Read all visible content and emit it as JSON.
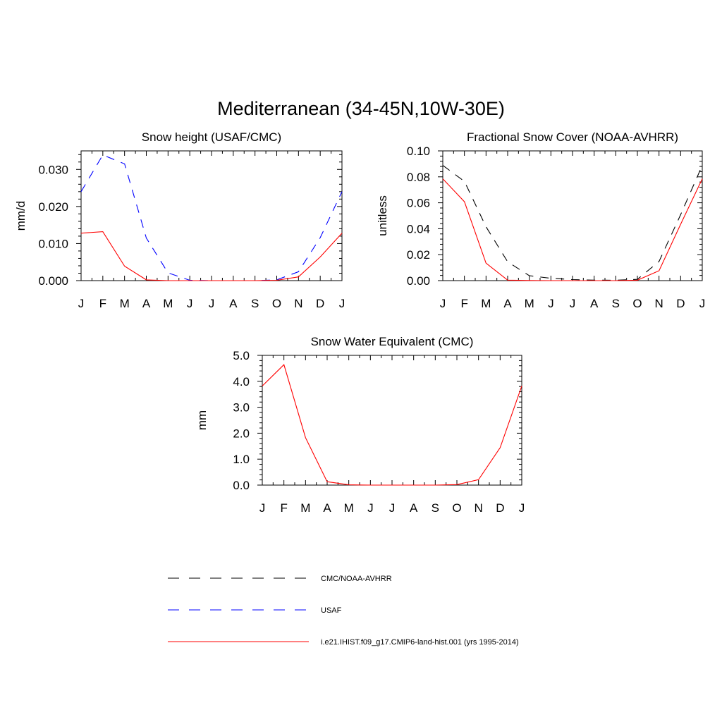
{
  "main_title": "Mediterranean (34-45N,10W-30E)",
  "chart_data": [
    {
      "type": "line",
      "title": "Snow height (USAF/CMC)",
      "ylabel": "mm/d",
      "xlabel": "",
      "categories": [
        "J",
        "F",
        "M",
        "A",
        "M",
        "J",
        "J",
        "A",
        "S",
        "O",
        "N",
        "D",
        "J"
      ],
      "ylim": [
        0,
        0.035
      ],
      "yticks": [
        "0.000",
        "0.010",
        "0.020",
        "0.030"
      ],
      "ytick_values": [
        0,
        0.01,
        0.02,
        0.03
      ],
      "grid": false,
      "series": [
        {
          "name": "USAF",
          "color": "#0000ff",
          "style": "dashed",
          "values": [
            0.024,
            0.0339,
            0.0315,
            0.0115,
            0.0021,
            0.0001,
            0.0,
            0.0,
            0.0,
            0.0002,
            0.0024,
            0.0116,
            0.024
          ]
        },
        {
          "name": "i.e21.IHIST.f09_g17.CMIP6-land-hist.001 (yrs 1995-2014)",
          "color": "#ff0000",
          "style": "solid",
          "values": [
            0.0128,
            0.0132,
            0.0039,
            0.0002,
            0.0,
            0.0,
            0.0,
            0.0,
            0.0,
            0.0001,
            0.001,
            0.0064,
            0.0128
          ]
        }
      ]
    },
    {
      "type": "line",
      "title": "Fractional Snow Cover (NOAA-AVHRR)",
      "ylabel": "unitless",
      "xlabel": "",
      "categories": [
        "J",
        "F",
        "M",
        "A",
        "M",
        "J",
        "J",
        "A",
        "S",
        "O",
        "N",
        "D",
        "J"
      ],
      "ylim": [
        0,
        0.1
      ],
      "yticks": [
        "0.00",
        "0.02",
        "0.04",
        "0.06",
        "0.08",
        "0.10"
      ],
      "ytick_values": [
        0,
        0.02,
        0.04,
        0.06,
        0.08,
        0.1
      ],
      "grid": false,
      "series": [
        {
          "name": "CMC/NOAA-AVHRR",
          "color": "#000000",
          "style": "dashed",
          "values": [
            0.0888,
            0.0765,
            0.0415,
            0.0145,
            0.0038,
            0.0018,
            0.0008,
            0.0004,
            0.0003,
            0.001,
            0.0148,
            0.0508,
            0.0888
          ]
        },
        {
          "name": "i.e21.IHIST.f09_g17.CMIP6-land-hist.001 (yrs 1995-2014)",
          "color": "#ff0000",
          "style": "solid",
          "values": [
            0.0785,
            0.0608,
            0.0135,
            0.0004,
            0.0001,
            0.0,
            0.0,
            0.0,
            0.0,
            0.0003,
            0.0076,
            0.0434,
            0.0785
          ]
        }
      ]
    },
    {
      "type": "line",
      "title": "Snow Water Equivalent (CMC)",
      "ylabel": "mm",
      "xlabel": "",
      "categories": [
        "J",
        "F",
        "M",
        "A",
        "M",
        "J",
        "J",
        "A",
        "S",
        "O",
        "N",
        "D",
        "J"
      ],
      "ylim": [
        0,
        5.0
      ],
      "yticks": [
        "0.0",
        "1.0",
        "2.0",
        "3.0",
        "4.0",
        "5.0"
      ],
      "ytick_values": [
        0,
        1,
        2,
        3,
        4,
        5
      ],
      "grid": false,
      "series": [
        {
          "name": "CMC/NOAA-AVHRR",
          "color": "#000000",
          "style": "dashed",
          "values": [
            0,
            0,
            0,
            0,
            0,
            0,
            0,
            0,
            0,
            0,
            0,
            0,
            0
          ]
        },
        {
          "name": "i.e21.IHIST.f09_g17.CMIP6-land-hist.001 (yrs 1995-2014)",
          "color": "#ff0000",
          "style": "solid",
          "values": [
            3.82,
            4.64,
            1.83,
            0.13,
            0.01,
            0.0,
            0.0,
            0.0,
            0.0,
            0.02,
            0.21,
            1.44,
            3.82
          ]
        }
      ]
    }
  ],
  "legend": [
    {
      "label": "CMC/NOAA-AVHRR",
      "color": "#000000",
      "style": "dashed"
    },
    {
      "label": "USAF",
      "color": "#0000ff",
      "style": "dashed"
    },
    {
      "label": "i.e21.IHIST.f09_g17.CMIP6-land-hist.001 (yrs 1995-2014)",
      "color": "#ff0000",
      "style": "solid"
    }
  ]
}
